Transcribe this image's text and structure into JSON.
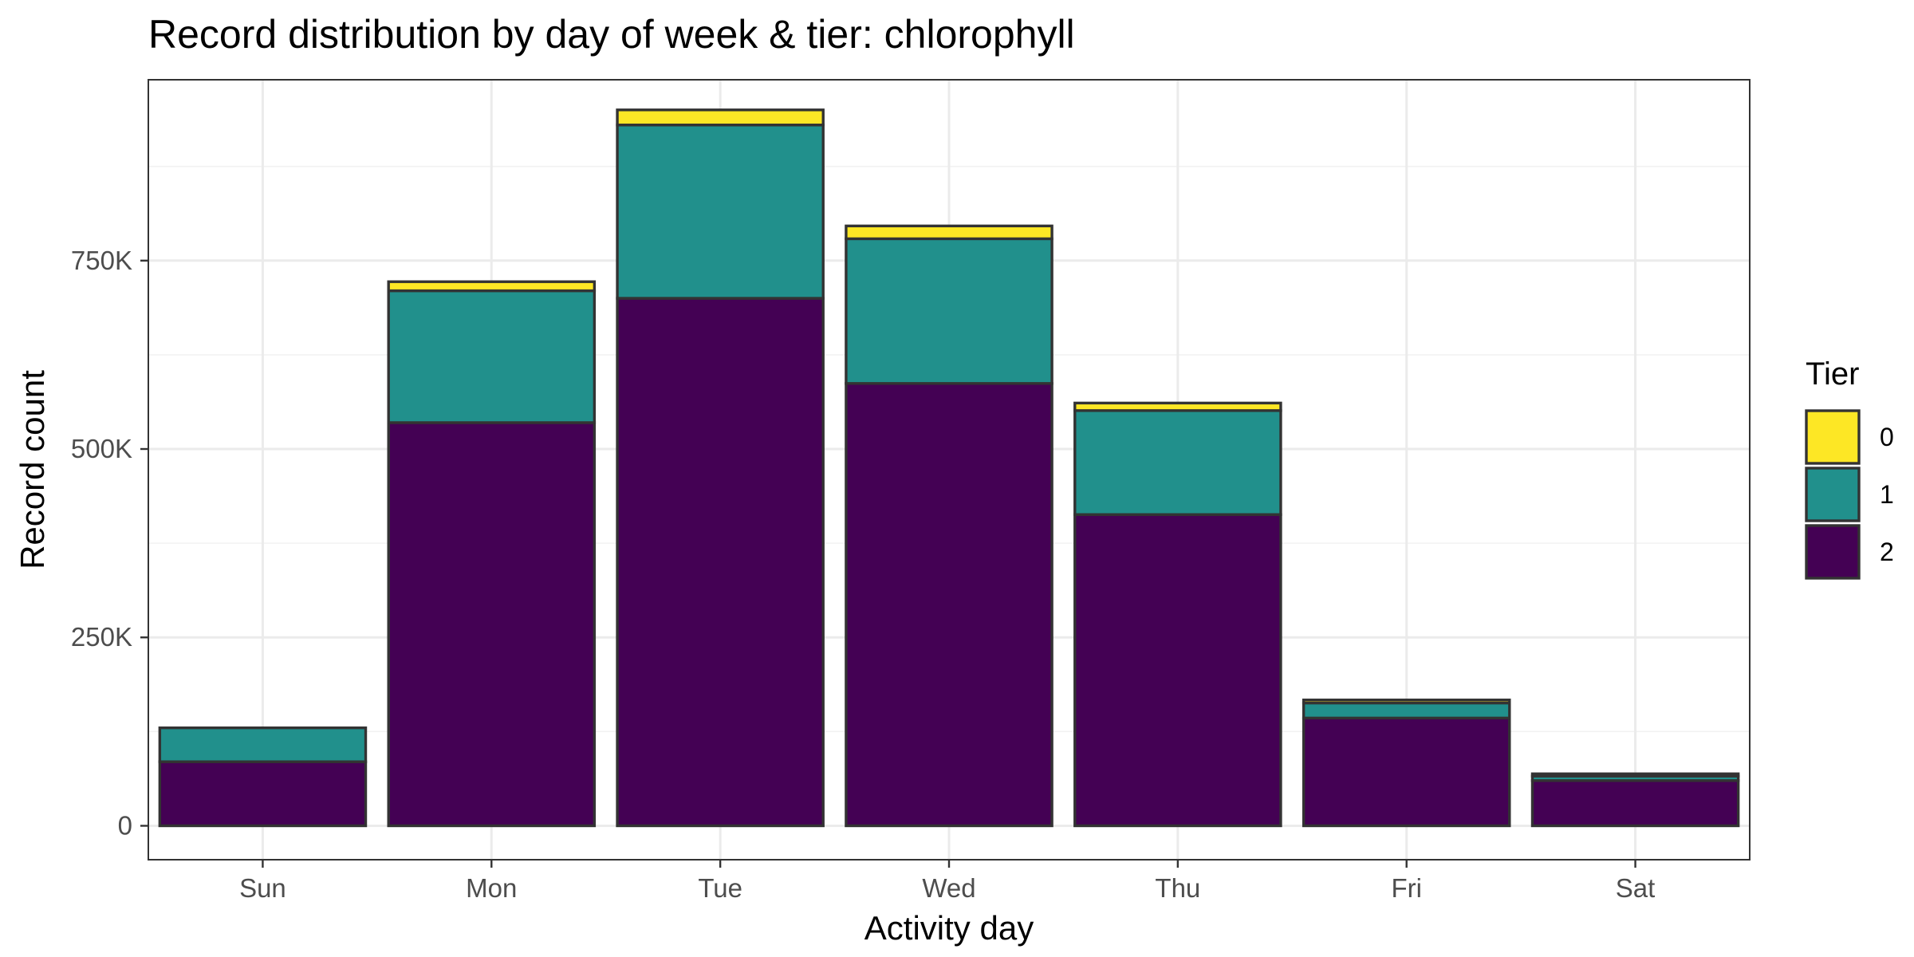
{
  "chart_data": {
    "type": "bar",
    "stacked": true,
    "title": "Record distribution by day of week & tier: chlorophyll",
    "xlabel": "Activity day",
    "ylabel": "Record count",
    "categories": [
      "Sun",
      "Mon",
      "Tue",
      "Wed",
      "Thu",
      "Fri",
      "Sat"
    ],
    "series": [
      {
        "name": "2",
        "color": "#440154",
        "values": [
          85000,
          535000,
          700000,
          587000,
          413000,
          143000,
          60000
        ]
      },
      {
        "name": "1",
        "color": "#21908C",
        "values": [
          45000,
          175000,
          230000,
          192000,
          138000,
          20000,
          6000
        ]
      },
      {
        "name": "0",
        "color": "#FDE725",
        "values": [
          0,
          12000,
          20000,
          17000,
          10000,
          4000,
          3000
        ]
      }
    ],
    "ylim": [
      -45000,
      990000
    ],
    "yticks": [
      0,
      250000,
      500000,
      750000
    ],
    "ytick_labels": [
      "0",
      "250K",
      "500K",
      "750K"
    ],
    "grid": true,
    "legend": {
      "title": "Tier",
      "placement": "right",
      "entries": [
        {
          "label": "0",
          "color": "#FDE725"
        },
        {
          "label": "1",
          "color": "#21908C"
        },
        {
          "label": "2",
          "color": "#440154"
        }
      ]
    }
  }
}
